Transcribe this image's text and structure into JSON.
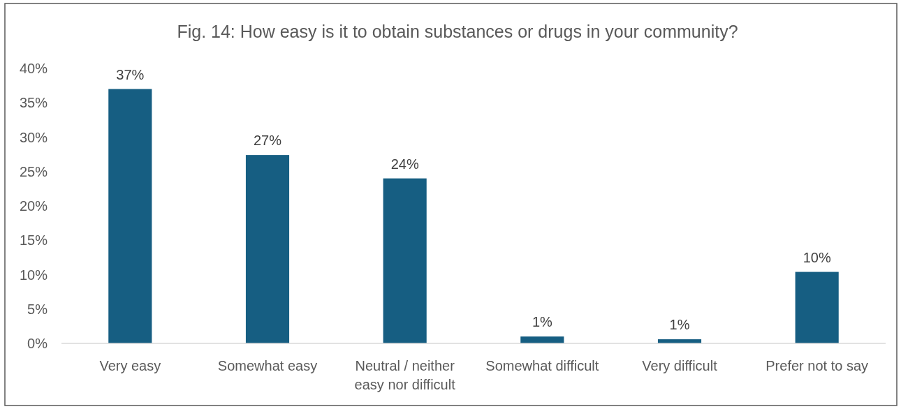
{
  "chart_data": {
    "type": "bar",
    "title": "Fig. 14: How easy is it to obtain substances or drugs in your community?",
    "categories": [
      "Very easy",
      "Somewhat easy",
      "Neutral / neither easy nor difficult",
      "Somewhat difficult",
      "Very difficult",
      "Prefer not to say"
    ],
    "values": [
      37,
      27.4,
      24,
      1,
      0.6,
      10.4
    ],
    "color": "#165e82",
    "value_labels": [
      "37%",
      "27%",
      "24%",
      "1%",
      "1%",
      "10%"
    ],
    "ylim": [
      0,
      40
    ],
    "yticks": [
      {
        "value": 0,
        "label": "0%"
      },
      {
        "value": 5,
        "label": "5%"
      },
      {
        "value": 10,
        "label": "10%"
      },
      {
        "value": 15,
        "label": "15%"
      },
      {
        "value": 20,
        "label": "20%"
      },
      {
        "value": 25,
        "label": "25%"
      },
      {
        "value": 30,
        "label": "30%"
      },
      {
        "value": 35,
        "label": "35%"
      },
      {
        "value": 40,
        "label": "40%"
      }
    ]
  }
}
